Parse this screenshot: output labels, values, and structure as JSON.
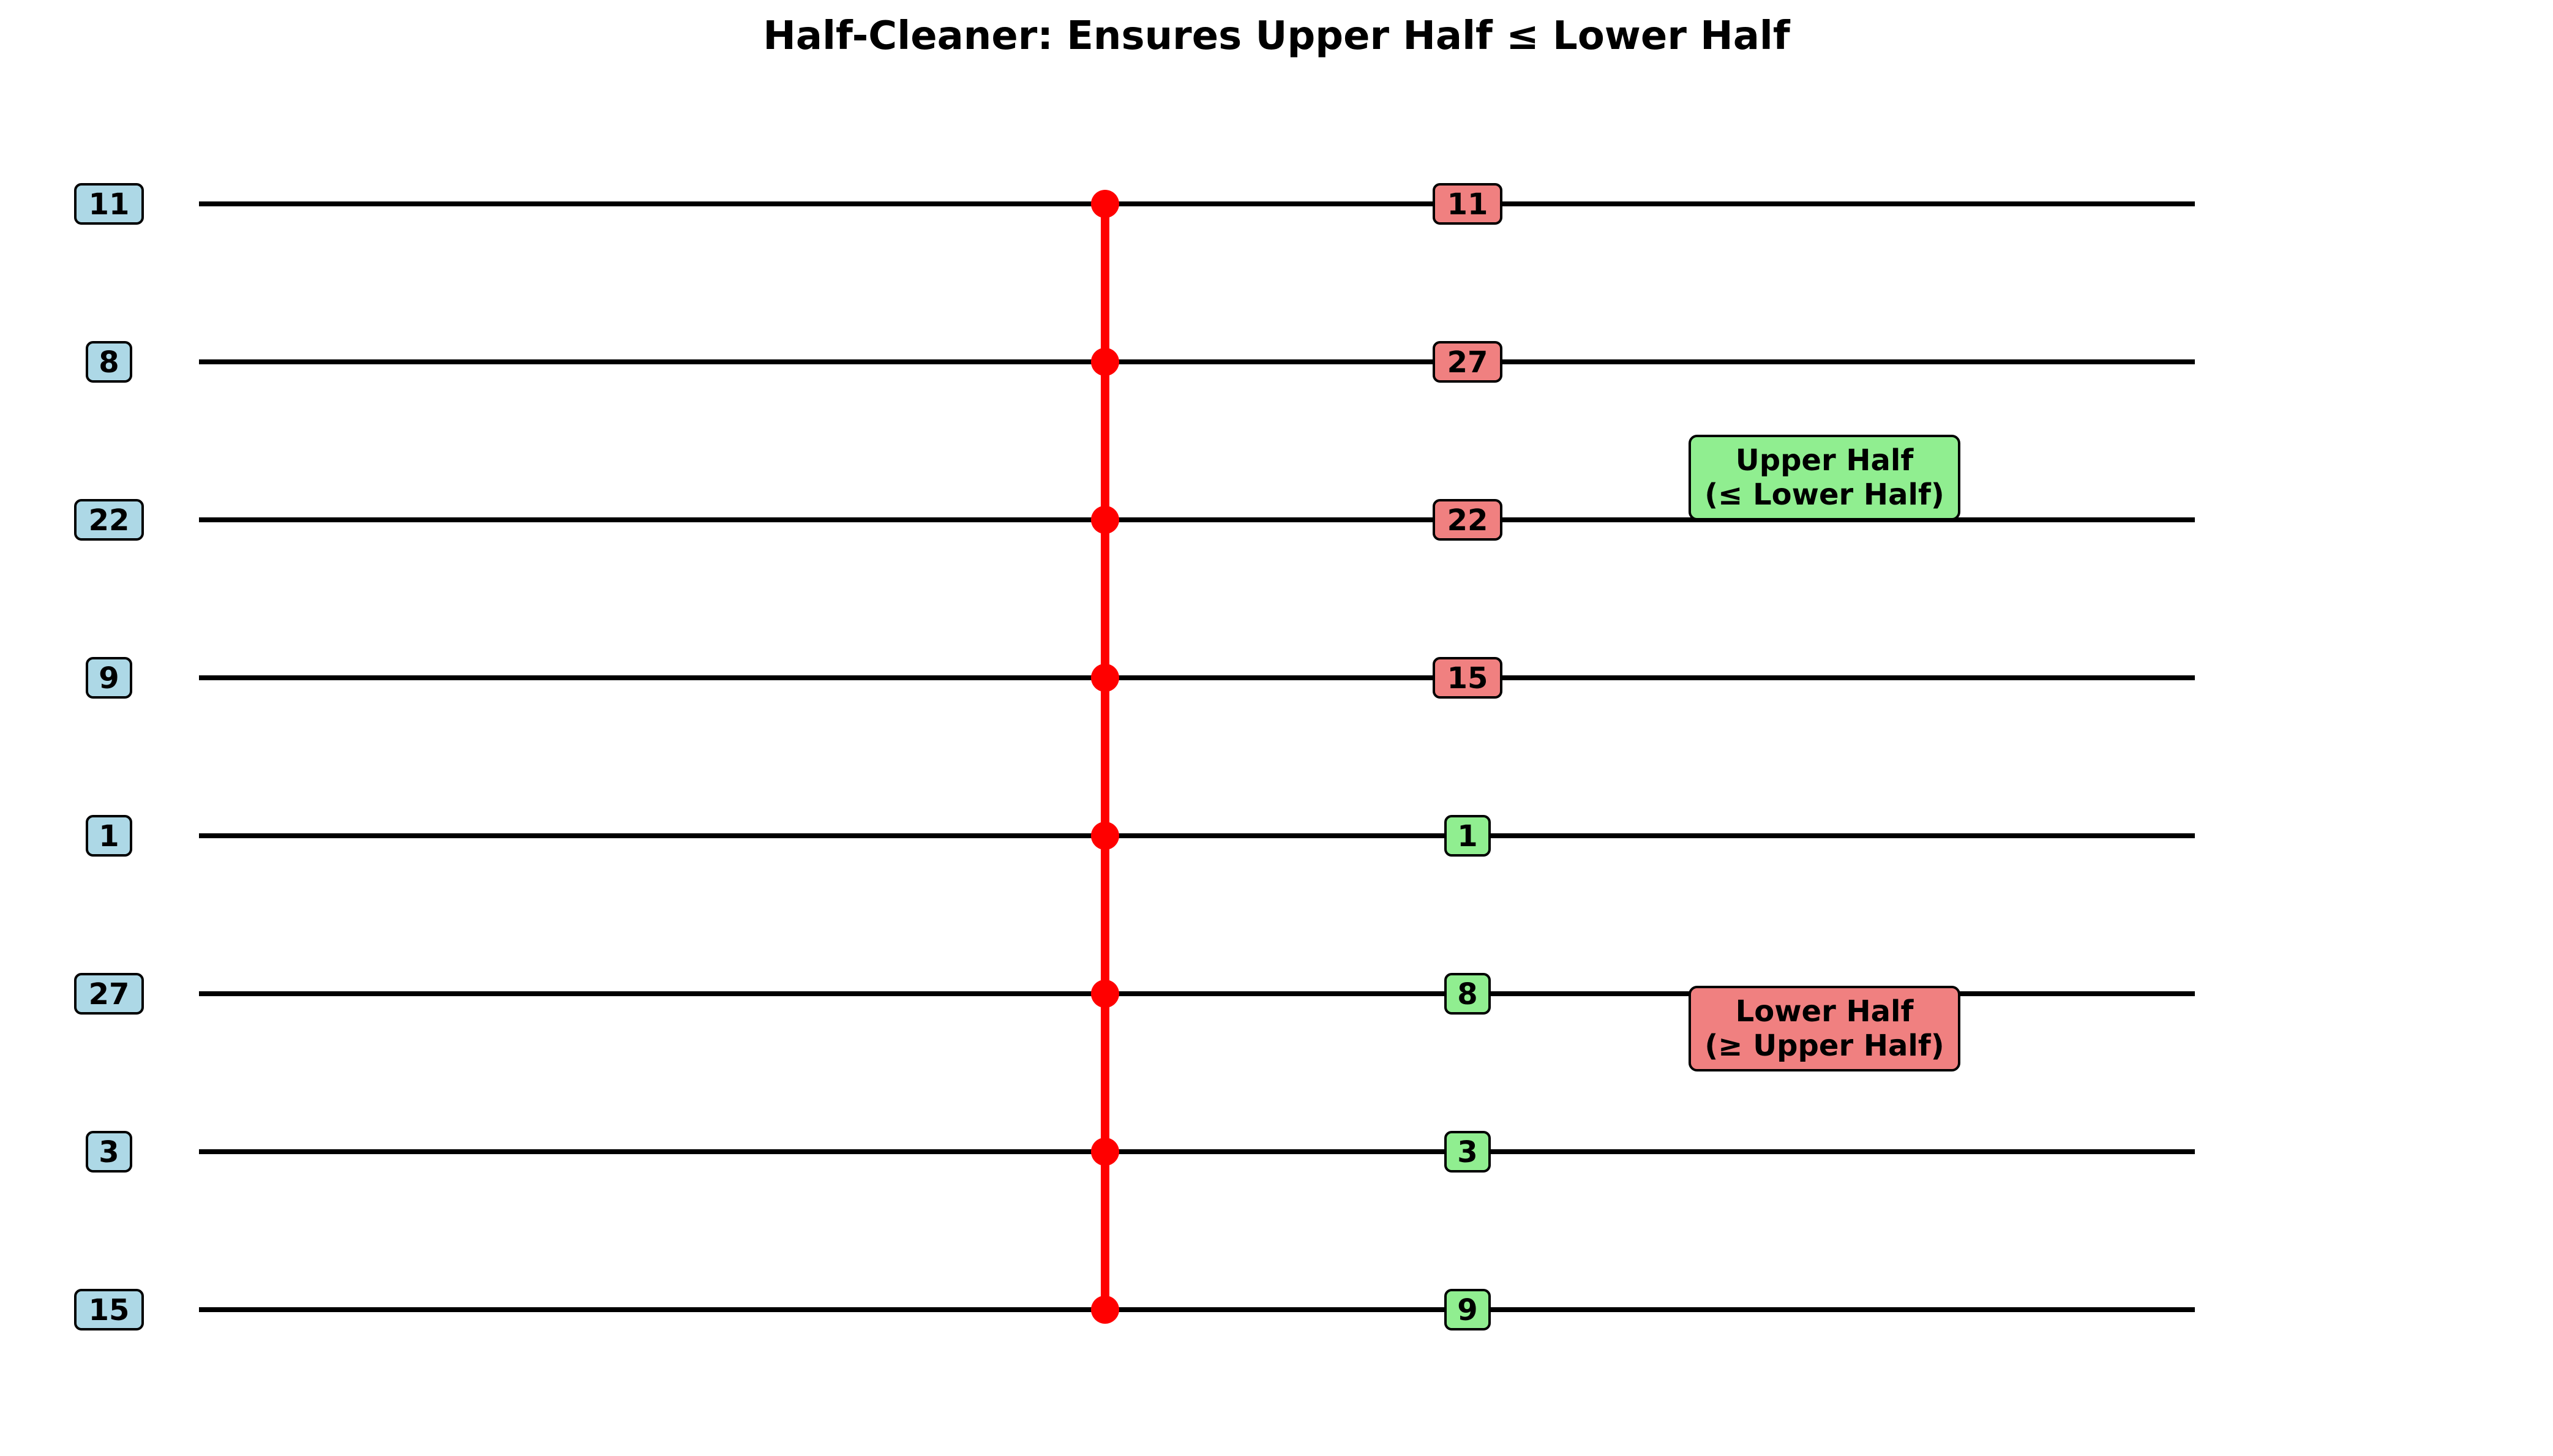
{
  "title": "Half-Cleaner: Ensures Upper Half ≤ Lower Half",
  "colors": {
    "wire": "#000000",
    "comparator": "#ff0000",
    "input_box": "#add8e6",
    "upper_box": "#f08080",
    "lower_box": "#90ee90"
  },
  "inputs": [
    "11",
    "8",
    "22",
    "9",
    "1",
    "27",
    "3",
    "15"
  ],
  "outputs": [
    {
      "value": "11",
      "half": "upper"
    },
    {
      "value": "27",
      "half": "upper"
    },
    {
      "value": "22",
      "half": "upper"
    },
    {
      "value": "15",
      "half": "upper"
    },
    {
      "value": "1",
      "half": "lower"
    },
    {
      "value": "8",
      "half": "lower"
    },
    {
      "value": "3",
      "half": "lower"
    },
    {
      "value": "9",
      "half": "lower"
    }
  ],
  "annotations": {
    "upper": [
      "Upper Half",
      "(≤ Lower Half)"
    ],
    "lower": [
      "Lower Half",
      "(≥ Upper Half)"
    ]
  }
}
